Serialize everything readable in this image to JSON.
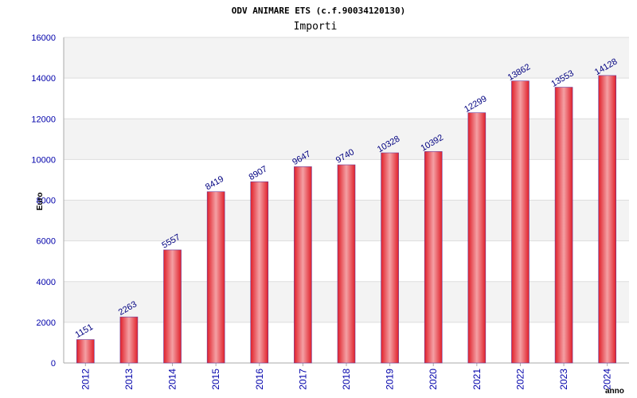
{
  "chart_data": {
    "type": "bar",
    "title": "ODV ANIMARE ETS (c.f.90034120130)",
    "subtitle": "Importi",
    "xlabel": "anno",
    "ylabel": "Euro",
    "categories": [
      "2012",
      "2013",
      "2014",
      "2015",
      "2016",
      "2017",
      "2018",
      "2019",
      "2020",
      "2021",
      "2022",
      "2023",
      "2024"
    ],
    "values": [
      1151,
      2263,
      5557,
      8419,
      8907,
      9647,
      9740,
      10328,
      10392,
      12299,
      13862,
      13553,
      14128
    ],
    "ylim": [
      0,
      16000
    ],
    "yticks": [
      0,
      2000,
      4000,
      6000,
      8000,
      10000,
      12000,
      14000,
      16000
    ],
    "grid": true,
    "legend": "none",
    "colors": {
      "bar_edge": "#e0202a",
      "bar_center": "#f4a0a4",
      "bar_outline": "#6a3a9a",
      "band_shaded": "#f3f3f3",
      "band_plain": "#ffffff",
      "tick_text": "#0000aa",
      "label_text": "#000080"
    }
  }
}
